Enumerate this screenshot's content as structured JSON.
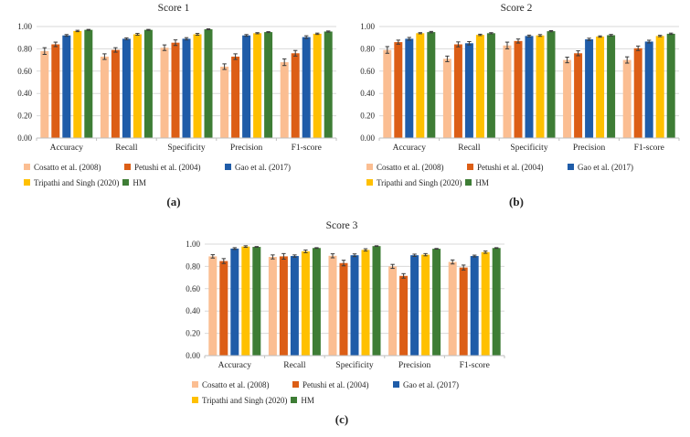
{
  "figure": {
    "captions": [
      "(a)",
      "(b)",
      "(c)"
    ]
  },
  "axis": {
    "ytick_labels": [
      "0.00",
      "0.20",
      "0.40",
      "0.60",
      "0.80",
      "1.00"
    ],
    "grid_color": "#d9d9d9",
    "axis_color": "#bfbfbf",
    "error_bar_color": "#3a3a3a",
    "text_color": "#262626"
  },
  "chart_data": [
    {
      "type": "bar",
      "title": "Score 1",
      "categories": [
        "Accuracy",
        "Recall",
        "Specificity",
        "Precision",
        "F1-score"
      ],
      "ylim": [
        0,
        1
      ],
      "yticks": [
        0,
        0.2,
        0.4,
        0.6,
        0.8,
        1.0
      ],
      "grid": true,
      "legend_position": "bottom",
      "series": [
        {
          "name": "Cosatto et al. (2008)",
          "color": "#FBBE92",
          "values": [
            0.78,
            0.73,
            0.81,
            0.64,
            0.68
          ],
          "errors": [
            0.03,
            0.025,
            0.025,
            0.025,
            0.03
          ]
        },
        {
          "name": "Petushi et al. (2004)",
          "color": "#DC5E16",
          "values": [
            0.84,
            0.79,
            0.855,
            0.73,
            0.76
          ],
          "errors": [
            0.02,
            0.02,
            0.025,
            0.025,
            0.025
          ]
        },
        {
          "name": "Gao et al. (2017)",
          "color": "#1F5CA8",
          "values": [
            0.92,
            0.89,
            0.89,
            0.92,
            0.905
          ],
          "errors": [
            0.008,
            0.008,
            0.01,
            0.008,
            0.012
          ]
        },
        {
          "name": "Tripathi and Singh (2020)",
          "color": "#FFC000",
          "values": [
            0.96,
            0.93,
            0.93,
            0.94,
            0.935
          ],
          "errors": [
            0.006,
            0.008,
            0.008,
            0.005,
            0.006
          ]
        },
        {
          "name": "HM",
          "color": "#3E7D35",
          "values": [
            0.97,
            0.97,
            0.975,
            0.95,
            0.955
          ],
          "errors": [
            0.004,
            0.004,
            0.004,
            0.004,
            0.005
          ]
        }
      ]
    },
    {
      "type": "bar",
      "title": "Score 2",
      "categories": [
        "Accuracy",
        "Recall",
        "Specificity",
        "Precision",
        "F1-score"
      ],
      "ylim": [
        0,
        1
      ],
      "yticks": [
        0,
        0.2,
        0.4,
        0.6,
        0.8,
        1.0
      ],
      "grid": true,
      "legend_position": "bottom",
      "series": [
        {
          "name": "Cosatto et al. (2008)",
          "color": "#FBBE92",
          "values": [
            0.79,
            0.71,
            0.83,
            0.7,
            0.7
          ],
          "errors": [
            0.03,
            0.025,
            0.03,
            0.025,
            0.028
          ]
        },
        {
          "name": "Petushi et al. (2004)",
          "color": "#DC5E16",
          "values": [
            0.86,
            0.84,
            0.87,
            0.76,
            0.805
          ],
          "errors": [
            0.018,
            0.022,
            0.018,
            0.022,
            0.02
          ]
        },
        {
          "name": "Gao et al. (2017)",
          "color": "#1F5CA8",
          "values": [
            0.89,
            0.85,
            0.915,
            0.885,
            0.865
          ],
          "errors": [
            0.012,
            0.015,
            0.008,
            0.01,
            0.012
          ]
        },
        {
          "name": "Tripathi and Singh (2020)",
          "color": "#FFC000",
          "values": [
            0.94,
            0.925,
            0.92,
            0.91,
            0.915
          ],
          "errors": [
            0.005,
            0.006,
            0.008,
            0.006,
            0.006
          ]
        },
        {
          "name": "HM",
          "color": "#3E7D35",
          "values": [
            0.95,
            0.94,
            0.958,
            0.922,
            0.935
          ],
          "errors": [
            0.006,
            0.005,
            0.005,
            0.007,
            0.006
          ]
        }
      ]
    },
    {
      "type": "bar",
      "title": "Score 3",
      "categories": [
        "Accuracy",
        "Recall",
        "Specificity",
        "Precision",
        "F1-score"
      ],
      "ylim": [
        0,
        1
      ],
      "yticks": [
        0,
        0.2,
        0.4,
        0.6,
        0.8,
        1.0
      ],
      "grid": true,
      "legend_position": "bottom",
      "series": [
        {
          "name": "Cosatto et al. (2008)",
          "color": "#FBBE92",
          "values": [
            0.89,
            0.885,
            0.895,
            0.8,
            0.84
          ],
          "errors": [
            0.015,
            0.018,
            0.018,
            0.018,
            0.018
          ]
        },
        {
          "name": "Petushi et al. (2004)",
          "color": "#DC5E16",
          "values": [
            0.848,
            0.89,
            0.83,
            0.715,
            0.79
          ],
          "errors": [
            0.022,
            0.025,
            0.025,
            0.02,
            0.022
          ]
        },
        {
          "name": "Gao et al. (2017)",
          "color": "#1F5CA8",
          "values": [
            0.96,
            0.893,
            0.9,
            0.9,
            0.893
          ],
          "errors": [
            0.008,
            0.01,
            0.012,
            0.01,
            0.008
          ]
        },
        {
          "name": "Tripathi and Singh (2020)",
          "color": "#FFC000",
          "values": [
            0.978,
            0.935,
            0.948,
            0.905,
            0.928
          ],
          "errors": [
            0.007,
            0.012,
            0.01,
            0.01,
            0.01
          ]
        },
        {
          "name": "HM",
          "color": "#3E7D35",
          "values": [
            0.975,
            0.965,
            0.982,
            0.958,
            0.965
          ],
          "errors": [
            0.003,
            0.003,
            0.003,
            0.003,
            0.003
          ]
        }
      ]
    }
  ]
}
